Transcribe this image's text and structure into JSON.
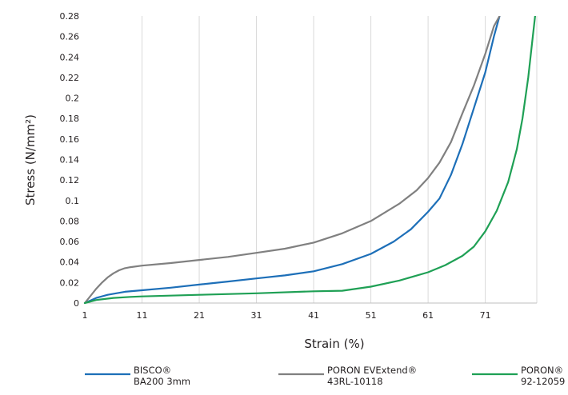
{
  "chart_data": {
    "type": "line",
    "xlabel": "Strain (%)",
    "ylabel": "Stress (N/mm²)",
    "x_ticks": [
      "1",
      "11",
      "21",
      "31",
      "41",
      "51",
      "61",
      "71"
    ],
    "y_ticks": [
      "0",
      "0.02",
      "0.04",
      "0.06",
      "0.08",
      "0.1",
      "0.12",
      "0.14",
      "0.16",
      "0.18",
      "0.2",
      "0.22",
      "0.24",
      "0.26",
      "0.28"
    ],
    "xlim": [
      1,
      80
    ],
    "ylim": [
      0,
      0.28
    ],
    "grid": "vertical",
    "legend_position": "bottom",
    "series": [
      {
        "name": "BISCO® BA200 3mm",
        "legend_lines": [
          "BISCO®",
          "BA200 3mm"
        ],
        "color": "#1d6fb8",
        "points": [
          [
            1,
            0
          ],
          [
            3,
            0.005
          ],
          [
            5,
            0.008
          ],
          [
            8,
            0.011
          ],
          [
            11,
            0.0125
          ],
          [
            16,
            0.015
          ],
          [
            21,
            0.018
          ],
          [
            26,
            0.021
          ],
          [
            31,
            0.024
          ],
          [
            36,
            0.027
          ],
          [
            41,
            0.031
          ],
          [
            46,
            0.038
          ],
          [
            51,
            0.048
          ],
          [
            55,
            0.06
          ],
          [
            58,
            0.072
          ],
          [
            61,
            0.089
          ],
          [
            63,
            0.102
          ],
          [
            65,
            0.125
          ],
          [
            67,
            0.155
          ],
          [
            69,
            0.19
          ],
          [
            71,
            0.225
          ],
          [
            72.5,
            0.26
          ],
          [
            73.5,
            0.28
          ]
        ]
      },
      {
        "name": "PORON EVExtend® 43RL-10118",
        "legend_lines": [
          "PORON EVExtend®",
          "43RL-10118"
        ],
        "color": "#808080",
        "points": [
          [
            1,
            0
          ],
          [
            2,
            0.007
          ],
          [
            3,
            0.014
          ],
          [
            4,
            0.02
          ],
          [
            5,
            0.025
          ],
          [
            6,
            0.029
          ],
          [
            7,
            0.032
          ],
          [
            8,
            0.034
          ],
          [
            9,
            0.035
          ],
          [
            11,
            0.0365
          ],
          [
            16,
            0.039
          ],
          [
            21,
            0.042
          ],
          [
            26,
            0.045
          ],
          [
            31,
            0.049
          ],
          [
            36,
            0.053
          ],
          [
            41,
            0.059
          ],
          [
            46,
            0.068
          ],
          [
            51,
            0.08
          ],
          [
            56,
            0.097
          ],
          [
            59,
            0.11
          ],
          [
            61,
            0.122
          ],
          [
            63,
            0.137
          ],
          [
            65,
            0.157
          ],
          [
            67,
            0.185
          ],
          [
            69,
            0.212
          ],
          [
            71,
            0.243
          ],
          [
            72.5,
            0.27
          ],
          [
            73.5,
            0.28
          ]
        ]
      },
      {
        "name": "PORON® 92-12059",
        "legend_lines": [
          "PORON®",
          "92-12059"
        ],
        "color": "#1fa055",
        "points": [
          [
            1,
            0
          ],
          [
            3,
            0.003
          ],
          [
            6,
            0.005
          ],
          [
            9,
            0.006
          ],
          [
            11,
            0.0065
          ],
          [
            21,
            0.008
          ],
          [
            31,
            0.0095
          ],
          [
            41,
            0.0115
          ],
          [
            46,
            0.012
          ],
          [
            51,
            0.016
          ],
          [
            56,
            0.022
          ],
          [
            61,
            0.03
          ],
          [
            64,
            0.037
          ],
          [
            67,
            0.046
          ],
          [
            69,
            0.055
          ],
          [
            71,
            0.07
          ],
          [
            73,
            0.09
          ],
          [
            75,
            0.118
          ],
          [
            76.5,
            0.15
          ],
          [
            77.5,
            0.18
          ],
          [
            78.5,
            0.22
          ],
          [
            79.3,
            0.26
          ],
          [
            79.7,
            0.28
          ]
        ]
      }
    ]
  }
}
